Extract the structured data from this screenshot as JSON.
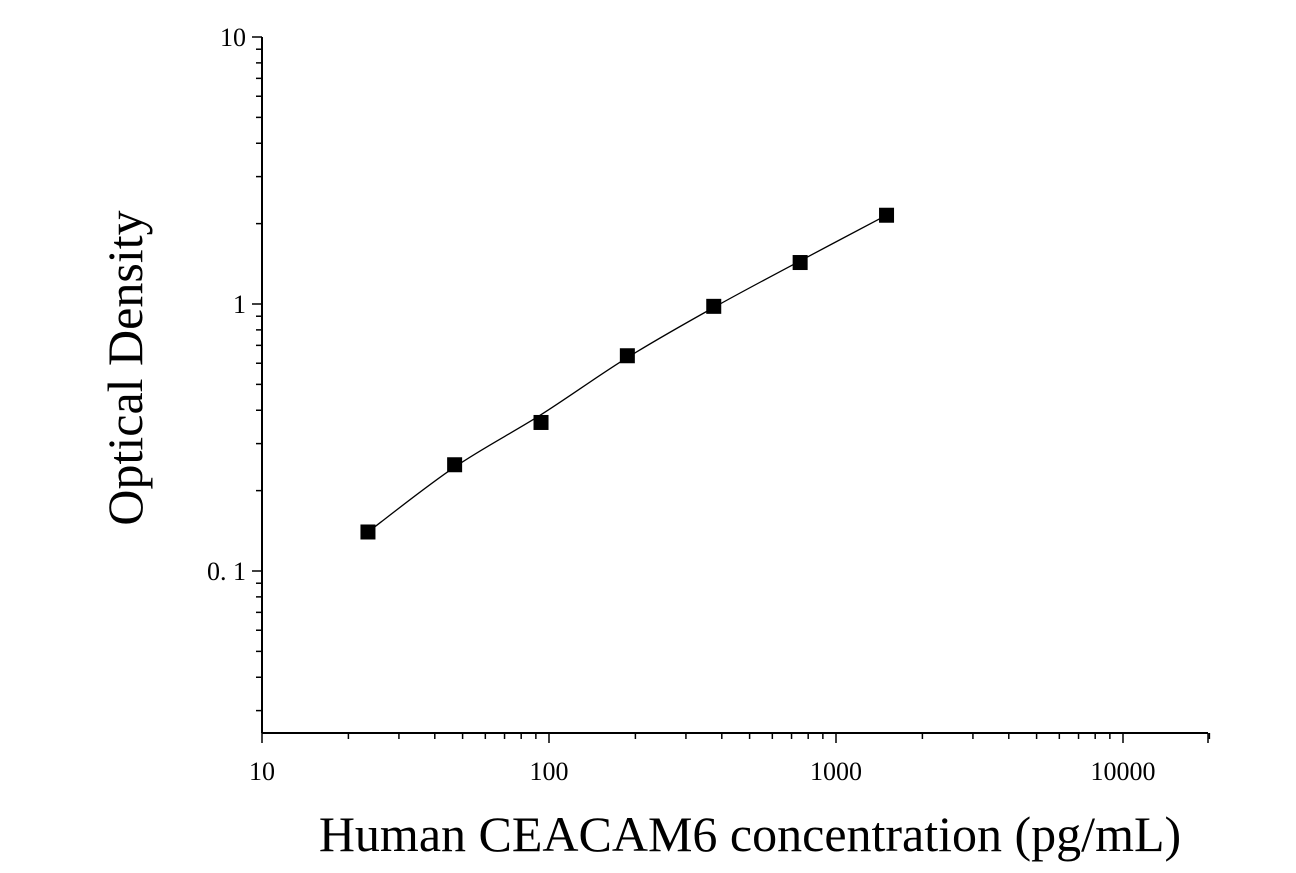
{
  "chart_data": {
    "type": "scatter",
    "title": "",
    "xlabel": "Human CEACAM6 concentration (pg/mL)",
    "ylabel": "Optical Density",
    "x_scale": "log",
    "y_scale": "log",
    "xlim": [
      10,
      20000
    ],
    "ylim": [
      0.025,
      10
    ],
    "x_ticks": [
      {
        "value": 10,
        "label": "10"
      },
      {
        "value": 100,
        "label": "100"
      },
      {
        "value": 1000,
        "label": "1000"
      },
      {
        "value": 10000,
        "label": "10000"
      }
    ],
    "y_ticks": [
      {
        "value": 0.1,
        "label": "0. 1"
      },
      {
        "value": 1,
        "label": "1"
      },
      {
        "value": 10,
        "label": "10"
      }
    ],
    "grid": false,
    "series": [
      {
        "marker": "square",
        "color": "#000000",
        "x": [
          23.4,
          46.9,
          93.8,
          187.5,
          375,
          750,
          1500
        ],
        "y": [
          0.14,
          0.25,
          0.36,
          0.64,
          0.98,
          1.43,
          2.15
        ]
      }
    ],
    "fit_curve": {
      "style": "line",
      "color": "#000000",
      "x": [
        23.4,
        46.9,
        93.8,
        187.5,
        375,
        750,
        1500
      ],
      "y": [
        0.14,
        0.245,
        0.385,
        0.63,
        0.97,
        1.45,
        2.15
      ]
    }
  }
}
